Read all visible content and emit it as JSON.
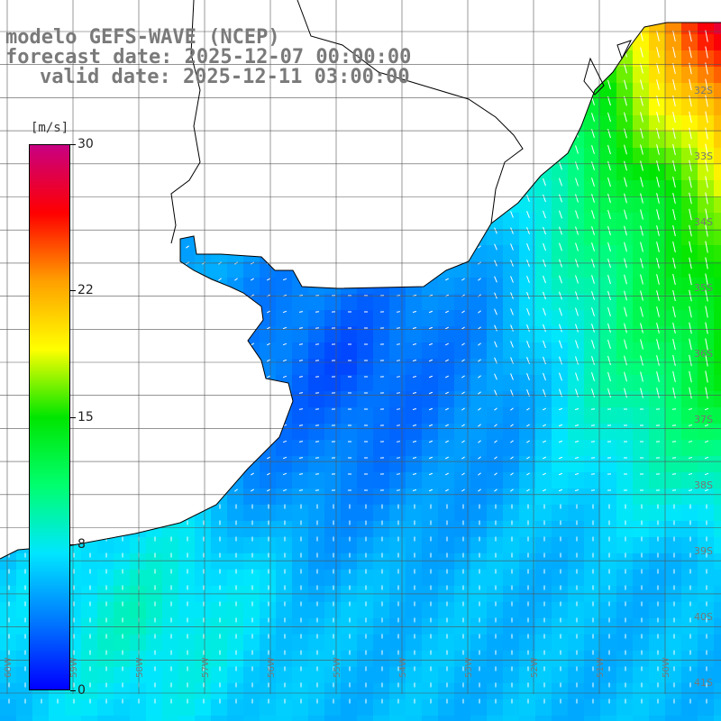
{
  "title": {
    "line1": "modelo GEFS-WAVE (NCEP)",
    "line2": "forecast date: 2025-12-07 00:00:00",
    "line3": "valid date: 2025-12-11 03:00:00"
  },
  "colorbar": {
    "unit": "[m/s]",
    "min": 0,
    "max": 30,
    "ticks": [
      {
        "value": 30,
        "label": "30"
      },
      {
        "value": 22,
        "label": "22"
      },
      {
        "value": 15,
        "label": "15"
      },
      {
        "value": 8,
        "label": "8"
      },
      {
        "value": 0,
        "label": "0"
      }
    ],
    "colors": [
      "#0000ff",
      "#0078ff",
      "#00e6ff",
      "#00ff6e",
      "#00e600",
      "#ffff00",
      "#ffa000",
      "#ff0000",
      "#c80082"
    ]
  },
  "map": {
    "variable": "wind speed",
    "lat_labels": [
      "32S",
      "33S",
      "34S",
      "35S",
      "36S",
      "37S",
      "38S",
      "39S",
      "40S",
      "41S"
    ],
    "lon_labels": [
      "60W",
      "59W",
      "58W",
      "57W",
      "56W",
      "55W",
      "54W",
      "53W",
      "52W",
      "51W",
      "50W"
    ],
    "colors": {
      "land": "#ffffff",
      "coast": "#000000",
      "grid": "#555555",
      "arrow": "#ffffff"
    }
  }
}
